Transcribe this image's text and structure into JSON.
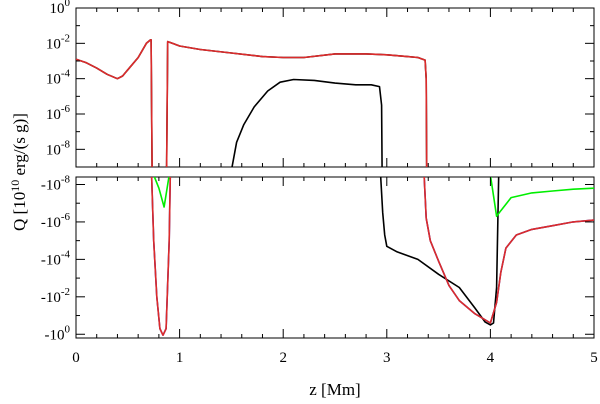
{
  "chart_data": {
    "type": "line",
    "xlabel": "z [Mm]",
    "ylabel": "Q [10",
    "ylabel_sup": "10",
    "ylabel_units": " erg/(s g)]",
    "xlim": [
      0,
      5
    ],
    "x_ticks": [
      "0",
      "1",
      "2",
      "3",
      "4",
      "5"
    ],
    "panels": [
      {
        "name": "top",
        "scale": "log",
        "ylim_log10": [
          -9,
          0
        ],
        "ytick_labels": [
          {
            "base": "10",
            "exp": "0",
            "v": 0
          },
          {
            "base": "10",
            "exp": "-2",
            "v": -2
          },
          {
            "base": "10",
            "exp": "-4",
            "v": -4
          },
          {
            "base": "10",
            "exp": "-6",
            "v": -6
          },
          {
            "base": "10",
            "exp": "-8",
            "v": -8
          }
        ],
        "series": [
          {
            "color": "#000000",
            "points": [
              [
                1.5,
                -9.2
              ],
              [
                1.55,
                -7.6
              ],
              [
                1.62,
                -6.6
              ],
              [
                1.72,
                -5.6
              ],
              [
                1.85,
                -4.7
              ],
              [
                1.97,
                -4.2
              ],
              [
                2.1,
                -4.05
              ],
              [
                2.3,
                -4.1
              ],
              [
                2.5,
                -4.25
              ],
              [
                2.7,
                -4.35
              ],
              [
                2.85,
                -4.35
              ],
              [
                2.93,
                -4.45
              ],
              [
                2.95,
                -5.5
              ],
              [
                2.955,
                -9.2
              ]
            ]
          },
          {
            "color": "#000000",
            "points": [
              [
                0,
                -2.9
              ],
              [
                0.1,
                -3.1
              ],
              [
                0.2,
                -3.4
              ],
              [
                0.3,
                -3.75
              ],
              [
                0.4,
                -4.0
              ],
              [
                0.45,
                -3.85
              ],
              [
                0.5,
                -3.5
              ],
              [
                0.6,
                -2.8
              ],
              [
                0.68,
                -2.0
              ],
              [
                0.72,
                -1.8
              ],
              [
                0.725,
                -1.8
              ],
              [
                0.735,
                -9.2
              ],
              [
                0.875,
                -9.2
              ],
              [
                0.885,
                -1.9
              ],
              [
                0.93,
                -2.0
              ],
              [
                1.0,
                -2.15
              ],
              [
                1.2,
                -2.35
              ],
              [
                1.5,
                -2.55
              ],
              [
                1.8,
                -2.75
              ],
              [
                2.0,
                -2.8
              ],
              [
                2.2,
                -2.8
              ],
              [
                2.5,
                -2.6
              ],
              [
                2.8,
                -2.6
              ],
              [
                3.0,
                -2.65
              ],
              [
                3.2,
                -2.75
              ],
              [
                3.3,
                -2.8
              ],
              [
                3.37,
                -2.95
              ],
              [
                3.38,
                -4.0
              ],
              [
                3.385,
                -9.2
              ]
            ]
          },
          {
            "color": "#dd2b2b",
            "points": [
              [
                0,
                -2.9
              ],
              [
                0.1,
                -3.1
              ],
              [
                0.2,
                -3.4
              ],
              [
                0.3,
                -3.75
              ],
              [
                0.4,
                -4.0
              ],
              [
                0.45,
                -3.85
              ],
              [
                0.5,
                -3.5
              ],
              [
                0.6,
                -2.8
              ],
              [
                0.68,
                -2.0
              ],
              [
                0.72,
                -1.8
              ],
              [
                0.725,
                -1.8
              ],
              [
                0.735,
                -9.2
              ],
              [
                0.875,
                -9.2
              ],
              [
                0.885,
                -1.9
              ],
              [
                0.93,
                -2.0
              ],
              [
                1.0,
                -2.15
              ],
              [
                1.2,
                -2.35
              ],
              [
                1.5,
                -2.55
              ],
              [
                1.8,
                -2.75
              ],
              [
                2.0,
                -2.8
              ],
              [
                2.2,
                -2.8
              ],
              [
                2.5,
                -2.6
              ],
              [
                2.8,
                -2.6
              ],
              [
                3.0,
                -2.65
              ],
              [
                3.2,
                -2.75
              ],
              [
                3.3,
                -2.8
              ],
              [
                3.37,
                -2.95
              ],
              [
                3.38,
                -4.0
              ],
              [
                3.385,
                -9.2
              ]
            ]
          }
        ]
      },
      {
        "name": "bottom",
        "scale": "neglog",
        "ylim_log10": [
          -8.4,
          0.2
        ],
        "ytick_labels": [
          {
            "base": "-10",
            "exp": "-8",
            "v": -8
          },
          {
            "base": "-10",
            "exp": "-6",
            "v": -6
          },
          {
            "base": "-10",
            "exp": "-4",
            "v": -4
          },
          {
            "base": "-10",
            "exp": "-2",
            "v": -2
          },
          {
            "base": "-10",
            "exp": "0",
            "v": 0
          }
        ],
        "series": [
          {
            "color": "#000000",
            "points": [
              [
                2.94,
                -8.5
              ],
              [
                2.96,
                -6.5
              ],
              [
                2.98,
                -5.3
              ],
              [
                3.0,
                -4.7
              ],
              [
                3.1,
                -4.4
              ],
              [
                3.3,
                -4.0
              ],
              [
                3.5,
                -3.2
              ],
              [
                3.7,
                -2.5
              ],
              [
                3.85,
                -1.4
              ],
              [
                3.95,
                -0.65
              ],
              [
                4.0,
                -0.5
              ],
              [
                4.03,
                -0.6
              ],
              [
                4.06,
                -2.5
              ],
              [
                4.08,
                -8.5
              ]
            ]
          },
          {
            "color": "#00ee00",
            "points": [
              [
                0.75,
                -8.5
              ],
              [
                0.8,
                -7.8
              ],
              [
                0.85,
                -6.8
              ],
              [
                0.9,
                -8.5
              ],
              [
                4.0,
                -8.5
              ],
              [
                4.06,
                -6.3
              ],
              [
                4.1,
                -6.6
              ],
              [
                4.2,
                -7.3
              ],
              [
                4.4,
                -7.55
              ],
              [
                4.6,
                -7.65
              ],
              [
                4.8,
                -7.75
              ],
              [
                5.0,
                -7.8
              ]
            ]
          },
          {
            "color": "#1a1aaa",
            "points": [
              [
                0.73,
                -8.5
              ],
              [
                0.75,
                -5.0
              ],
              [
                0.78,
                -2.0
              ],
              [
                0.81,
                -0.3
              ],
              [
                0.84,
                0.05
              ],
              [
                0.87,
                -0.3
              ],
              [
                0.9,
                -5.0
              ],
              [
                0.91,
                -8.5
              ],
              [
                3.36,
                -8.5
              ],
              [
                3.38,
                -6.2
              ],
              [
                3.42,
                -5.0
              ],
              [
                3.5,
                -3.9
              ],
              [
                3.6,
                -2.6
              ],
              [
                3.7,
                -1.8
              ],
              [
                3.85,
                -1.1
              ],
              [
                4.0,
                -0.6
              ],
              [
                4.06,
                -1.7
              ],
              [
                4.1,
                -3.3
              ],
              [
                4.15,
                -4.6
              ],
              [
                4.25,
                -5.3
              ],
              [
                4.4,
                -5.6
              ],
              [
                4.6,
                -5.8
              ],
              [
                4.8,
                -6.0
              ],
              [
                5.0,
                -6.1
              ]
            ]
          },
          {
            "color": "#dd2b2b",
            "points": [
              [
                0.73,
                -8.5
              ],
              [
                0.75,
                -5.0
              ],
              [
                0.78,
                -2.0
              ],
              [
                0.81,
                -0.3
              ],
              [
                0.84,
                0.05
              ],
              [
                0.87,
                -0.3
              ],
              [
                0.9,
                -5.0
              ],
              [
                0.91,
                -8.5
              ],
              [
                3.36,
                -8.5
              ],
              [
                3.38,
                -6.2
              ],
              [
                3.42,
                -5.0
              ],
              [
                3.5,
                -3.9
              ],
              [
                3.6,
                -2.6
              ],
              [
                3.7,
                -1.8
              ],
              [
                3.85,
                -1.1
              ],
              [
                4.0,
                -0.6
              ],
              [
                4.06,
                -1.7
              ],
              [
                4.1,
                -3.3
              ],
              [
                4.15,
                -4.6
              ],
              [
                4.25,
                -5.3
              ],
              [
                4.4,
                -5.6
              ],
              [
                4.6,
                -5.8
              ],
              [
                4.8,
                -6.0
              ],
              [
                5.0,
                -6.1
              ]
            ]
          }
        ]
      }
    ]
  }
}
